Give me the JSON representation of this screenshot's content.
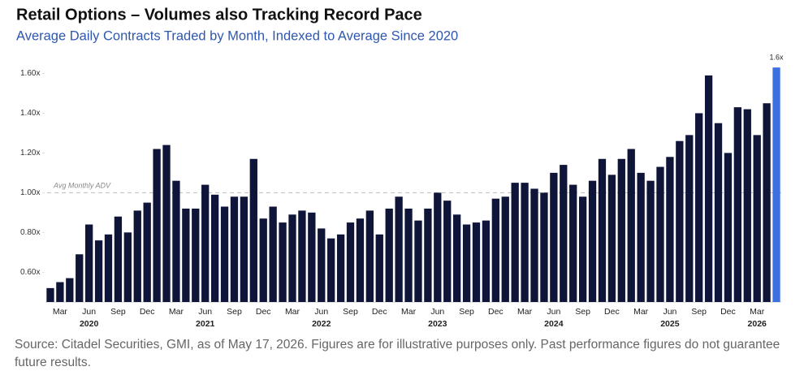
{
  "chart_data": {
    "type": "bar",
    "title": "Retail Options – Volumes also Tracking Record Pace",
    "subtitle": "Average Daily Contracts Traded by Month, Indexed to Average Since 2020",
    "categories": [
      null,
      "Mar",
      null,
      null,
      "Jun",
      null,
      null,
      "Sep",
      null,
      null,
      "Dec",
      null,
      null,
      "Mar",
      null,
      null,
      "Jun",
      null,
      null,
      "Sep",
      null,
      null,
      "Dec",
      null,
      null,
      "Mar",
      null,
      null,
      "Jun",
      null,
      null,
      "Sep",
      null,
      null,
      "Dec",
      null,
      null,
      "Mar",
      null,
      null,
      "Jun",
      null,
      null,
      "Sep",
      null,
      null,
      "Dec",
      null,
      null,
      "Mar",
      null,
      null,
      "Jun",
      null,
      null,
      "Sep",
      null,
      null,
      "Dec",
      null,
      null,
      "Mar",
      null,
      null,
      "Jun",
      null,
      null,
      "Sep",
      null,
      null,
      "Dec",
      null,
      null,
      "Mar",
      null,
      null
    ],
    "year_labels": [
      "2020",
      "2021",
      "2022",
      "2023",
      "2024",
      "2025",
      "2026"
    ],
    "values": [
      0.52,
      0.55,
      0.57,
      0.69,
      0.84,
      0.76,
      0.79,
      0.88,
      0.8,
      0.91,
      0.95,
      1.22,
      1.24,
      1.06,
      0.92,
      0.92,
      1.04,
      0.99,
      0.93,
      0.98,
      0.98,
      1.17,
      0.87,
      0.93,
      0.85,
      0.89,
      0.91,
      0.9,
      0.82,
      0.77,
      0.79,
      0.85,
      0.87,
      0.91,
      0.79,
      0.92,
      0.98,
      0.92,
      0.86,
      0.92,
      1.0,
      0.96,
      0.89,
      0.84,
      0.85,
      0.86,
      0.97,
      0.98,
      1.05,
      1.05,
      1.02,
      1.0,
      1.1,
      1.14,
      1.04,
      0.98,
      1.06,
      1.17,
      1.09,
      1.17,
      1.22,
      1.1,
      1.06,
      1.13,
      1.18,
      1.26,
      1.29,
      1.4,
      1.59,
      1.35,
      1.2,
      1.43,
      1.42,
      1.29,
      1.45,
      1.63
    ],
    "value_labels": [
      null,
      null,
      null,
      null,
      null,
      null,
      null,
      null,
      null,
      null,
      null,
      null,
      null,
      null,
      null,
      null,
      null,
      null,
      null,
      null,
      null,
      null,
      null,
      null,
      null,
      null,
      null,
      null,
      null,
      null,
      null,
      null,
      null,
      null,
      null,
      null,
      null,
      null,
      null,
      null,
      null,
      null,
      null,
      null,
      null,
      null,
      null,
      null,
      null,
      null,
      null,
      null,
      null,
      null,
      null,
      null,
      null,
      null,
      null,
      null,
      null,
      null,
      null,
      null,
      null,
      null,
      null,
      null,
      null,
      null,
      null,
      null,
      null,
      null,
      null,
      "1.6x"
    ],
    "color": "#0f1538",
    "last_bar_color": "#3c6fe0",
    "ylim": [
      0.45,
      1.7
    ],
    "yticks": [
      {
        "value": 0.6,
        "label": "0.60x"
      },
      {
        "value": 0.8,
        "label": "0.80x"
      },
      {
        "value": 1.0,
        "label": "1.00x"
      },
      {
        "value": 1.2,
        "label": "1.20x"
      },
      {
        "value": 1.4,
        "label": "1.40x"
      },
      {
        "value": 1.6,
        "label": "1.60x"
      }
    ],
    "reference_line": {
      "value": 1.0,
      "label": "Avg Monthly ADV"
    },
    "source": "Source: Citadel Securities, GMI, as of May 17, 2026. Figures are for illustrative purposes only. Past performance figures do not guarantee future results."
  }
}
